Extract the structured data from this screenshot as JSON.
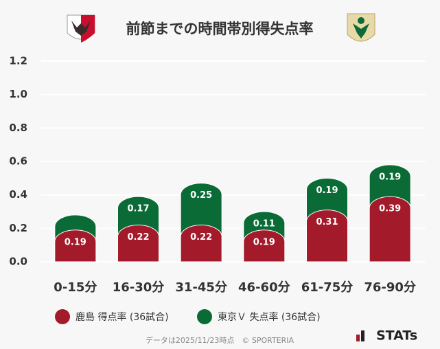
{
  "chart_data": {
    "type": "stacked_bar",
    "title": "前節までの時間帯別得失点率",
    "categories": [
      "0-15分",
      "16-30分",
      "31-45分",
      "46-60分",
      "61-75分",
      "76-90分"
    ],
    "series": [
      {
        "name": "鹿島 得点率 (36試合)",
        "color": "#a31a2b",
        "values": [
          0.19,
          0.22,
          0.22,
          0.19,
          0.31,
          0.39
        ]
      },
      {
        "name": "東京Ｖ 失点率 (36試合)",
        "color": "#0b6b36",
        "values": [
          0.09,
          0.17,
          0.25,
          0.11,
          0.19,
          0.19
        ],
        "value_labels": [
          "",
          "0.17",
          "0.25",
          "0.11",
          "0.19",
          "0.19"
        ]
      }
    ],
    "ylim": [
      0,
      1.2
    ],
    "yticks": [
      {
        "value": 0,
        "label": "0.0"
      },
      0.2,
      0.4,
      0.6,
      0.8,
      {
        "value": 1,
        "label": "1.0"
      },
      1.2
    ],
    "grid": true,
    "footer": "データは2025/11/23時点　© SPORTERIA",
    "brand": "STATs"
  }
}
